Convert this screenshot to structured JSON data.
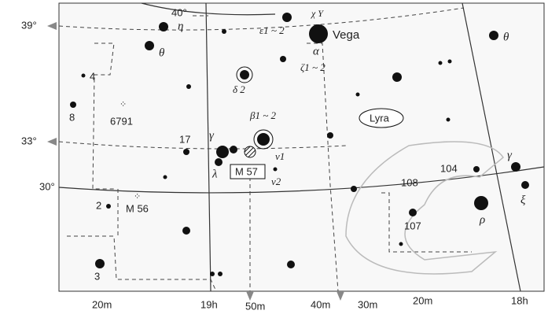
{
  "map": {
    "declinations": [
      "40°",
      "39°",
      "33°",
      "30°"
    ],
    "right_ascensions": [
      "20m",
      "19h",
      "50m",
      "40m",
      "30m",
      "20m",
      "18h"
    ],
    "constellation": "Lyra",
    "star_labels": [
      "Vega",
      "ε1 ~ 2",
      "ζ1 ~ 2",
      "α",
      "χ Υ",
      "η",
      "θ",
      "θ",
      "4",
      "8",
      "δ 2",
      "β1 ~ 2",
      "17",
      "γ",
      "ν1",
      "λ",
      "ν2",
      "2",
      "108",
      "104",
      "γ",
      "ξ",
      "107",
      "ρ",
      "3"
    ],
    "objects": [
      "6791",
      "M 57",
      "M 56"
    ]
  }
}
